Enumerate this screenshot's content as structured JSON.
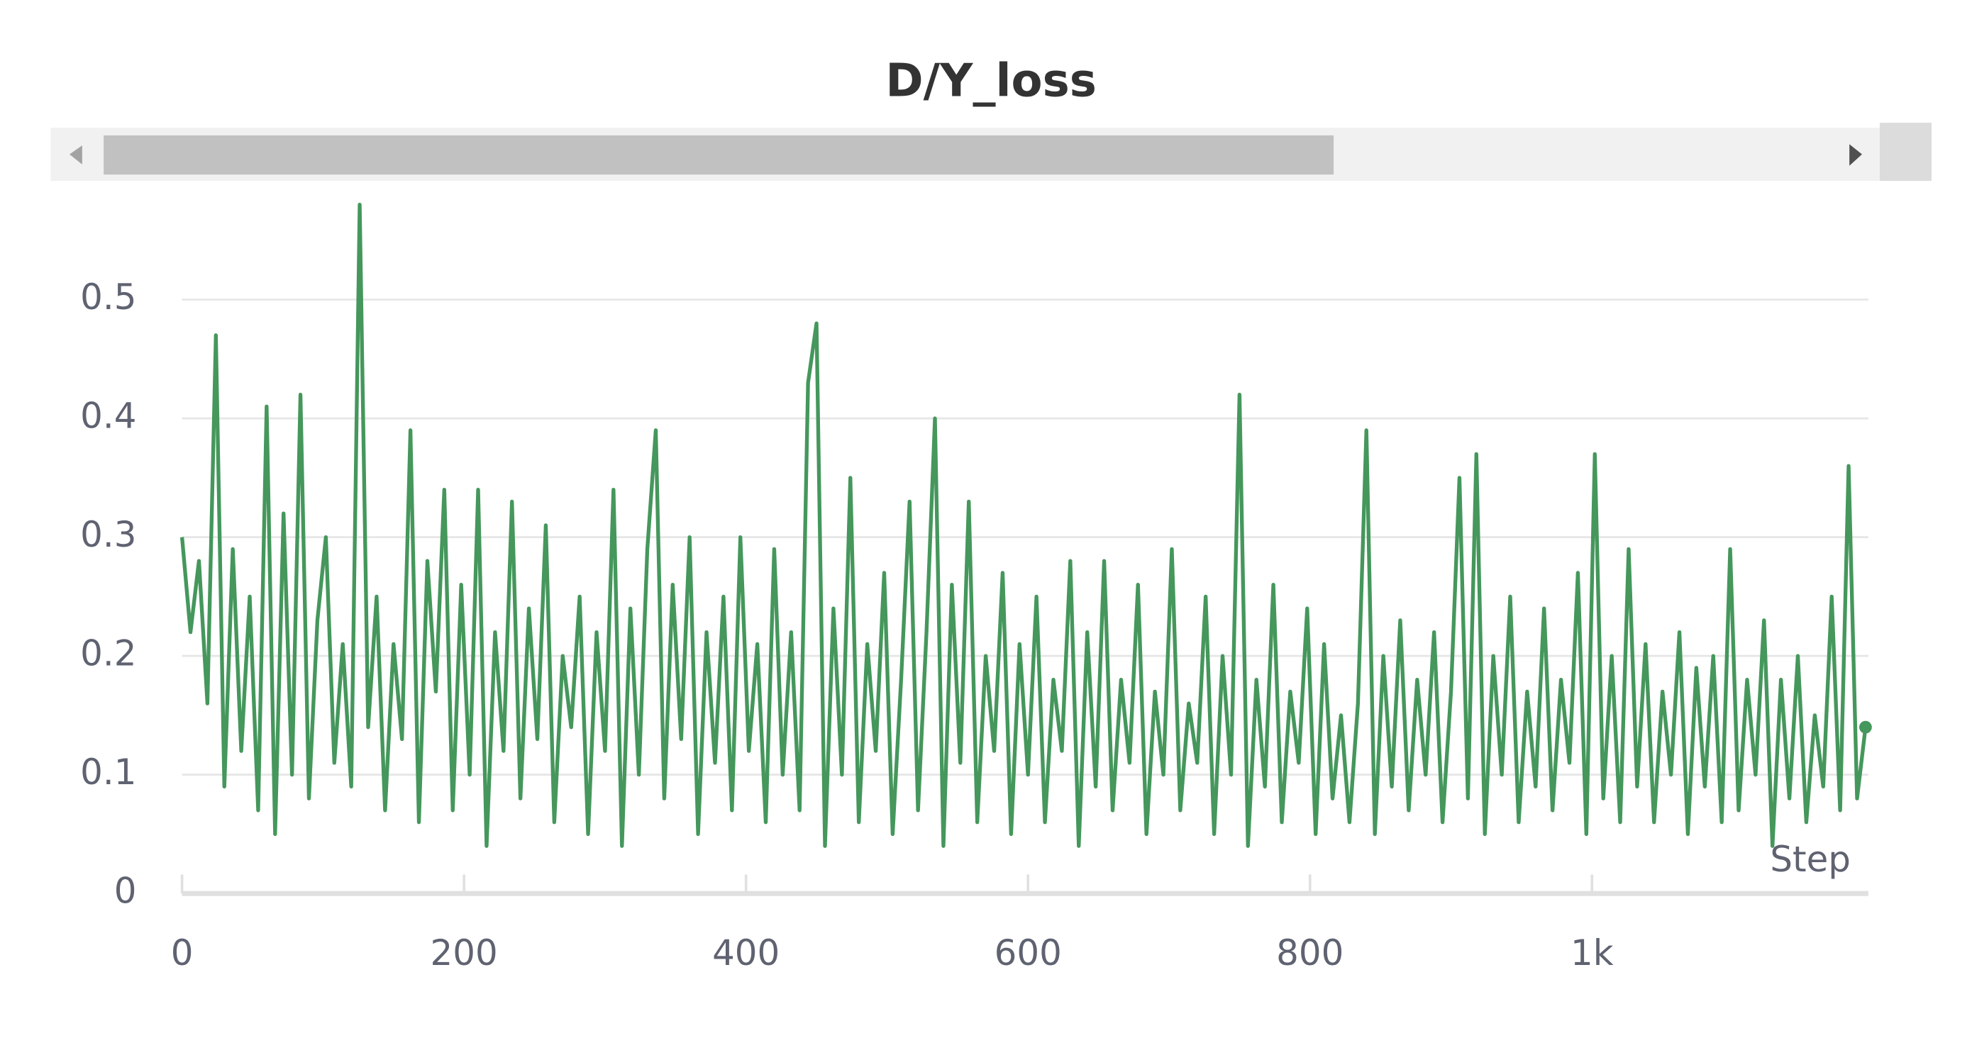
{
  "chart_data": {
    "type": "line",
    "title": "D/Y_loss",
    "xlabel": "Step",
    "color": "#45975c",
    "xlim": [
      0,
      1196
    ],
    "ylim": [
      0,
      0.6
    ],
    "xticks": [
      0,
      200,
      400,
      600,
      800,
      {
        "value": 1000,
        "label": "1k"
      }
    ],
    "yticks": [
      0,
      0.1,
      0.2,
      0.3,
      0.4,
      0.5
    ],
    "grid": true,
    "x": [
      0,
      6,
      12,
      18,
      24,
      30,
      36,
      42,
      48,
      54,
      60,
      66,
      72,
      78,
      84,
      90,
      96,
      102,
      108,
      114,
      120,
      126,
      132,
      138,
      144,
      150,
      156,
      162,
      168,
      174,
      180,
      186,
      192,
      198,
      204,
      210,
      216,
      222,
      228,
      234,
      240,
      246,
      252,
      258,
      264,
      270,
      276,
      282,
      288,
      294,
      300,
      306,
      312,
      318,
      324,
      330,
      336,
      342,
      348,
      354,
      360,
      366,
      372,
      378,
      384,
      390,
      396,
      402,
      408,
      414,
      420,
      426,
      432,
      438,
      444,
      450,
      456,
      462,
      468,
      474,
      480,
      486,
      492,
      498,
      504,
      510,
      516,
      522,
      528,
      534,
      540,
      546,
      552,
      558,
      564,
      570,
      576,
      582,
      588,
      594,
      600,
      606,
      612,
      618,
      624,
      630,
      636,
      642,
      648,
      654,
      660,
      666,
      672,
      678,
      684,
      690,
      696,
      702,
      708,
      714,
      720,
      726,
      732,
      738,
      744,
      750,
      756,
      762,
      768,
      774,
      780,
      786,
      792,
      798,
      804,
      810,
      816,
      822,
      828,
      834,
      840,
      846,
      852,
      858,
      864,
      870,
      876,
      882,
      888,
      894,
      900,
      906,
      912,
      918,
      924,
      930,
      936,
      942,
      948,
      954,
      960,
      966,
      972,
      978,
      984,
      990,
      996,
      1002,
      1008,
      1014,
      1020,
      1026,
      1032,
      1038,
      1044,
      1050,
      1056,
      1062,
      1068,
      1074,
      1080,
      1086,
      1092,
      1098,
      1104,
      1110,
      1116,
      1122,
      1128,
      1134,
      1140,
      1146,
      1152,
      1158,
      1164,
      1170,
      1176,
      1182,
      1188,
      1194
    ],
    "values": [
      0.3,
      0.22,
      0.28,
      0.16,
      0.47,
      0.09,
      0.29,
      0.12,
      0.25,
      0.07,
      0.41,
      0.05,
      0.32,
      0.1,
      0.42,
      0.08,
      0.23,
      0.3,
      0.11,
      0.21,
      0.09,
      0.58,
      0.14,
      0.25,
      0.07,
      0.21,
      0.13,
      0.39,
      0.06,
      0.28,
      0.17,
      0.34,
      0.07,
      0.26,
      0.1,
      0.34,
      0.04,
      0.22,
      0.12,
      0.33,
      0.08,
      0.24,
      0.13,
      0.31,
      0.06,
      0.2,
      0.14,
      0.25,
      0.05,
      0.22,
      0.12,
      0.34,
      0.04,
      0.24,
      0.1,
      0.29,
      0.39,
      0.08,
      0.26,
      0.13,
      0.3,
      0.05,
      0.22,
      0.11,
      0.25,
      0.07,
      0.3,
      0.12,
      0.21,
      0.06,
      0.29,
      0.1,
      0.22,
      0.07,
      0.43,
      0.48,
      0.04,
      0.24,
      0.1,
      0.35,
      0.06,
      0.21,
      0.12,
      0.27,
      0.05,
      0.18,
      0.33,
      0.07,
      0.22,
      0.4,
      0.04,
      0.26,
      0.11,
      0.33,
      0.06,
      0.2,
      0.12,
      0.27,
      0.05,
      0.21,
      0.1,
      0.25,
      0.06,
      0.18,
      0.12,
      0.28,
      0.04,
      0.22,
      0.09,
      0.28,
      0.07,
      0.18,
      0.11,
      0.26,
      0.05,
      0.17,
      0.1,
      0.29,
      0.07,
      0.16,
      0.11,
      0.25,
      0.05,
      0.2,
      0.1,
      0.42,
      0.04,
      0.18,
      0.09,
      0.26,
      0.06,
      0.17,
      0.11,
      0.24,
      0.05,
      0.21,
      0.08,
      0.15,
      0.06,
      0.16,
      0.39,
      0.05,
      0.2,
      0.09,
      0.23,
      0.07,
      0.18,
      0.1,
      0.22,
      0.06,
      0.17,
      0.35,
      0.08,
      0.37,
      0.05,
      0.2,
      0.1,
      0.25,
      0.06,
      0.17,
      0.09,
      0.24,
      0.07,
      0.18,
      0.11,
      0.27,
      0.05,
      0.37,
      0.08,
      0.2,
      0.06,
      0.29,
      0.09,
      0.21,
      0.06,
      0.17,
      0.1,
      0.22,
      0.05,
      0.19,
      0.09,
      0.2,
      0.06,
      0.29,
      0.07,
      0.18,
      0.1,
      0.23,
      0.04,
      0.18,
      0.08,
      0.2,
      0.06,
      0.15,
      0.09,
      0.25,
      0.07,
      0.36,
      0.08,
      0.14
    ]
  }
}
